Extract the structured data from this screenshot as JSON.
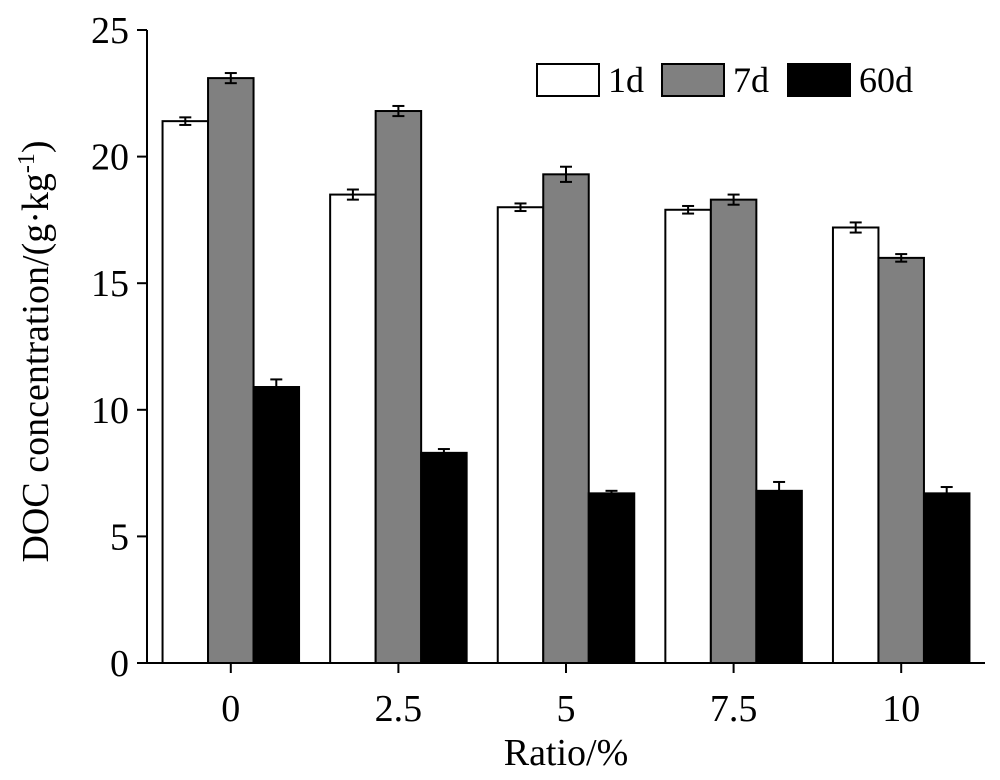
{
  "chart_data": {
    "type": "bar",
    "categories": [
      "0",
      "2.5",
      "5",
      "7.5",
      "10"
    ],
    "series": [
      {
        "name": "1d",
        "color": "#ffffff",
        "values": [
          21.4,
          18.5,
          18.0,
          17.9,
          17.2
        ],
        "errors": [
          0.15,
          0.2,
          0.15,
          0.15,
          0.2
        ]
      },
      {
        "name": "7d",
        "color": "#808080",
        "values": [
          23.1,
          21.8,
          19.3,
          18.3,
          16.0
        ],
        "errors": [
          0.2,
          0.2,
          0.3,
          0.2,
          0.15
        ]
      },
      {
        "name": "60d",
        "color": "#000000",
        "values": [
          10.9,
          8.3,
          6.7,
          6.8,
          6.7
        ],
        "errors": [
          0.3,
          0.15,
          0.1,
          0.35,
          0.25
        ]
      }
    ],
    "title": "",
    "xlabel": "Ratio/%",
    "ylabel": "DOC concentration/(g·kg",
    "ylabel_superscript": "-1",
    "ylabel_suffix": ")",
    "ylim": [
      0,
      25
    ],
    "yticks": [
      "0",
      "5",
      "10",
      "15",
      "20",
      "25"
    ],
    "grid": false,
    "legend_position": "top-right"
  }
}
